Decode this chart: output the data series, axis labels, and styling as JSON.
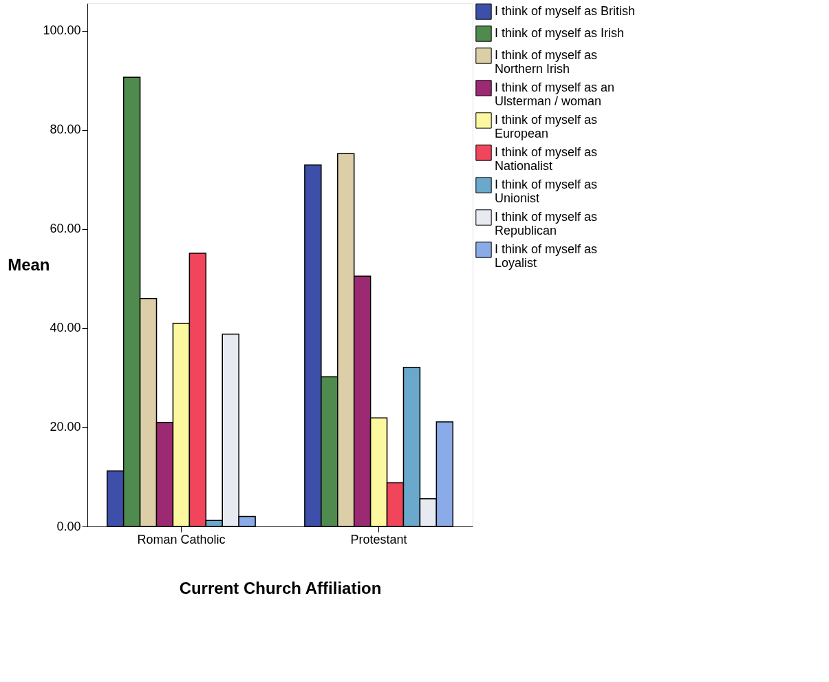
{
  "chart_data": {
    "type": "bar",
    "xlabel": "Current Church Affiliation",
    "ylabel": "Mean",
    "categories": [
      "Roman Catholic",
      "Protestant"
    ],
    "series": [
      {
        "name": "I think of myself as British",
        "color": "#3d4fa8",
        "values": [
          11.2,
          72.9
        ]
      },
      {
        "name": "I think of myself as Irish",
        "color": "#4f8a4f",
        "values": [
          90.6,
          30.2
        ]
      },
      {
        "name": "I think of myself as Northern Irish",
        "color": "#dccfa8",
        "values": [
          46.0,
          75.2
        ]
      },
      {
        "name": "I think of myself as an Ulsterman / woman",
        "color": "#9c2a72",
        "values": [
          21.0,
          50.5
        ]
      },
      {
        "name": "I think of myself as European",
        "color": "#fbf8a0",
        "values": [
          41.0,
          21.9
        ]
      },
      {
        "name": "I think of myself as Nationalist",
        "color": "#f0455a",
        "values": [
          55.1,
          8.8
        ]
      },
      {
        "name": "I think of myself as Unionist",
        "color": "#6aa8cc",
        "values": [
          1.2,
          32.1
        ]
      },
      {
        "name": "I think of myself as Republican",
        "color": "#e8eaf2",
        "values": [
          38.8,
          5.6
        ]
      },
      {
        "name": "I think of myself as Loyalist",
        "color": "#8aabe8",
        "values": [
          2.0,
          21.1
        ]
      }
    ],
    "ylim": [
      0,
      105.5
    ],
    "yticks": [
      {
        "value": 0,
        "label": "0.00"
      },
      {
        "value": 20,
        "label": "20.00"
      },
      {
        "value": 40,
        "label": "40.00"
      },
      {
        "value": 60,
        "label": "60.00"
      },
      {
        "value": 80,
        "label": "80.00"
      },
      {
        "value": 100,
        "label": "100.00"
      }
    ],
    "grid": false,
    "legend": "top right"
  }
}
